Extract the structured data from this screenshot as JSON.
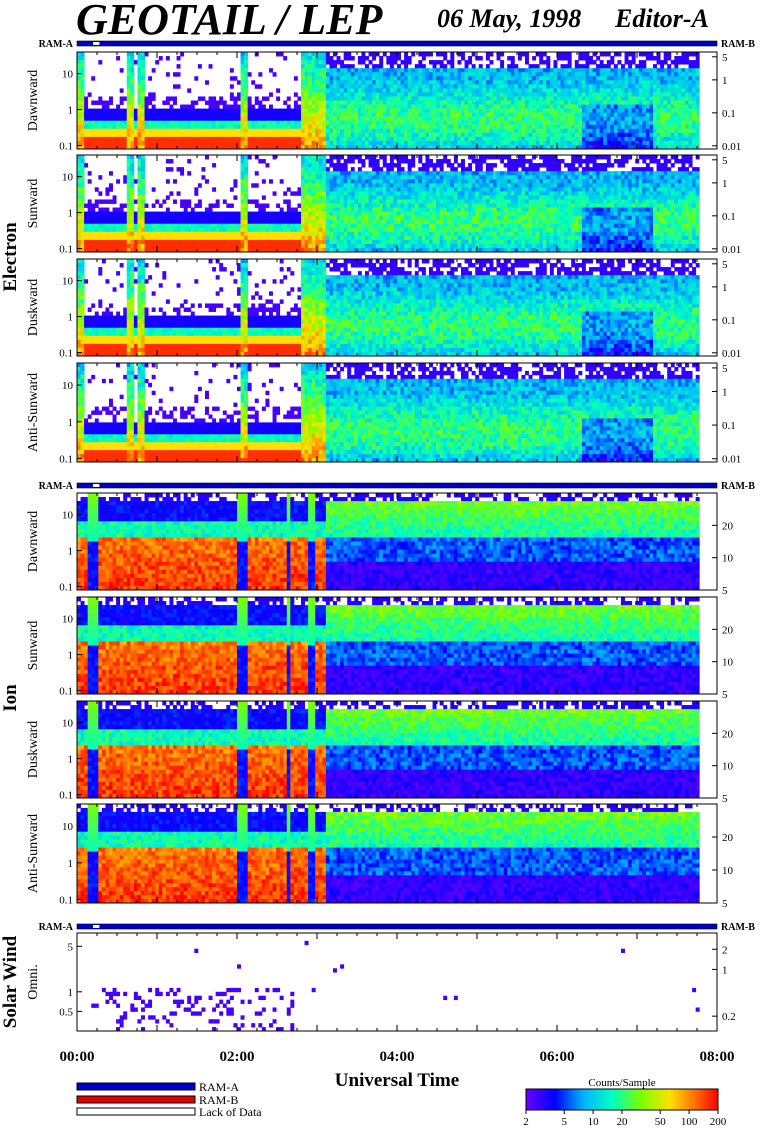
{
  "header": {
    "title": "GEOTAIL / LEP",
    "date": "06 May, 1998",
    "editor": "Editor-A"
  },
  "ram_labels": {
    "left": "RAM-A",
    "right": "RAM-B"
  },
  "groups": [
    {
      "name": "Electron",
      "panels": [
        {
          "label": "Dawnward",
          "left_ticks": [
            {
              "v": 0.1,
              "t": "0.1"
            },
            {
              "v": 1,
              "t": "1"
            },
            {
              "v": 10,
              "t": "10"
            }
          ],
          "right_ticks": [
            {
              "v": 0.01,
              "t": "0.01"
            },
            {
              "v": 0.1,
              "t": "0.1"
            },
            {
              "v": 1,
              "t": "1"
            },
            {
              "v": 5,
              "t": "5"
            }
          ]
        },
        {
          "label": "Sunward",
          "left_ticks": [
            {
              "v": 0.1,
              "t": "0.1"
            },
            {
              "v": 1,
              "t": "1"
            },
            {
              "v": 10,
              "t": "10"
            }
          ],
          "right_ticks": [
            {
              "v": 0.01,
              "t": "0.01"
            },
            {
              "v": 0.1,
              "t": "0.1"
            },
            {
              "v": 1,
              "t": "1"
            },
            {
              "v": 5,
              "t": "5"
            }
          ]
        },
        {
          "label": "Duskward",
          "left_ticks": [
            {
              "v": 0.1,
              "t": "0.1"
            },
            {
              "v": 1,
              "t": "1"
            },
            {
              "v": 10,
              "t": "10"
            }
          ],
          "right_ticks": [
            {
              "v": 0.01,
              "t": "0.01"
            },
            {
              "v": 0.1,
              "t": "0.1"
            },
            {
              "v": 1,
              "t": "1"
            },
            {
              "v": 5,
              "t": "5"
            }
          ]
        },
        {
          "label": "Anti-Sunward",
          "left_ticks": [
            {
              "v": 0.1,
              "t": "0.1"
            },
            {
              "v": 1,
              "t": "1"
            },
            {
              "v": 10,
              "t": "10"
            }
          ],
          "right_ticks": [
            {
              "v": 0.01,
              "t": "0.01"
            },
            {
              "v": 0.1,
              "t": "0.1"
            },
            {
              "v": 1,
              "t": "1"
            },
            {
              "v": 5,
              "t": "5"
            }
          ]
        }
      ]
    },
    {
      "name": "Ion",
      "panels": [
        {
          "label": "Dawnward",
          "left_ticks": [
            {
              "v": 0.1,
              "t": "0.1"
            },
            {
              "v": 1,
              "t": "1"
            },
            {
              "v": 10,
              "t": "10"
            }
          ],
          "right_ticks": [
            {
              "v": 5,
              "t": "5"
            },
            {
              "v": 10,
              "t": "10"
            },
            {
              "v": 20,
              "t": "20"
            }
          ]
        },
        {
          "label": "Sunward",
          "left_ticks": [
            {
              "v": 0.1,
              "t": "0.1"
            },
            {
              "v": 1,
              "t": "1"
            },
            {
              "v": 10,
              "t": "10"
            }
          ],
          "right_ticks": [
            {
              "v": 5,
              "t": "5"
            },
            {
              "v": 10,
              "t": "10"
            },
            {
              "v": 20,
              "t": "20"
            }
          ]
        },
        {
          "label": "Duskward",
          "left_ticks": [
            {
              "v": 0.1,
              "t": "0.1"
            },
            {
              "v": 1,
              "t": "1"
            },
            {
              "v": 10,
              "t": "10"
            }
          ],
          "right_ticks": [
            {
              "v": 5,
              "t": "5"
            },
            {
              "v": 10,
              "t": "10"
            },
            {
              "v": 20,
              "t": "20"
            }
          ]
        },
        {
          "label": "Anti-Sunward",
          "left_ticks": [
            {
              "v": 0.1,
              "t": "0.1"
            },
            {
              "v": 1,
              "t": "1"
            },
            {
              "v": 10,
              "t": "10"
            }
          ],
          "right_ticks": [
            {
              "v": 5,
              "t": "5"
            },
            {
              "v": 10,
              "t": "10"
            },
            {
              "v": 20,
              "t": "20"
            }
          ]
        }
      ]
    },
    {
      "name": "Solar Wind",
      "panels": [
        {
          "label": "Omni.",
          "left_ticks": [
            {
              "v": 0.5,
              "t": "0.5"
            },
            {
              "v": 1,
              "t": "1"
            },
            {
              "v": 5,
              "t": "5"
            }
          ],
          "right_ticks": [
            {
              "v": 0.2,
              "t": "0.2"
            },
            {
              "v": 1,
              "t": "1"
            },
            {
              "v": 2,
              "t": "2"
            }
          ]
        }
      ]
    }
  ],
  "x_ticks": [
    "00:00",
    "02:00",
    "04:00",
    "06:00",
    "08:00"
  ],
  "xlabel": "Universal Time",
  "legend": [
    {
      "label": "RAM-A",
      "color": "#0000cc"
    },
    {
      "label": "RAM-B",
      "color": "#dd0000"
    },
    {
      "label": "Lack of Data",
      "color": "#ffffff"
    }
  ],
  "colorbar": {
    "title": "Counts/Sample",
    "ticks": [
      "2",
      "5",
      "10",
      "20",
      "50",
      "100",
      "200"
    ]
  },
  "chart_data": {
    "type": "heatmap",
    "title": "GEOTAIL / LEP",
    "xlabel": "Universal Time",
    "x_range_hours": [
      0,
      8
    ],
    "y_scale": "log",
    "electron": {
      "ylim_left": [
        0.08,
        40
      ],
      "ylim_right": [
        0.008,
        7
      ],
      "transitions_hours": [
        0.15,
        0.3,
        0.6,
        0.95,
        2.0,
        2.15,
        2.6,
        2.8,
        2.9,
        3.1
      ],
      "sheath_onset_hours": 3.1
    },
    "ion": {
      "ylim_left": [
        0.08,
        40
      ],
      "ylim_right": [
        5,
        40
      ],
      "transitions_hours": [
        0.15,
        0.3,
        0.6,
        0.95,
        2.0,
        2.15,
        2.6,
        2.8,
        2.9,
        3.1
      ],
      "sheath_onset_hours": 3.1
    },
    "solar_wind": {
      "ylim_left": [
        0.25,
        8
      ],
      "ylim_right": [
        0.12,
        3.5
      ],
      "active_hours": [
        0.3,
        2.7
      ]
    },
    "ram_coverage_hours": [
      0,
      8
    ],
    "ram_a_gap_hours": [
      0.2,
      0.28
    ],
    "colorbar_range": [
      2,
      200
    ],
    "colorbar_scale": "log",
    "colormap": [
      "#5a00ff",
      "#0000ff",
      "#00c8ff",
      "#00ff80",
      "#c8ff00",
      "#ffd000",
      "#ff0000"
    ]
  }
}
